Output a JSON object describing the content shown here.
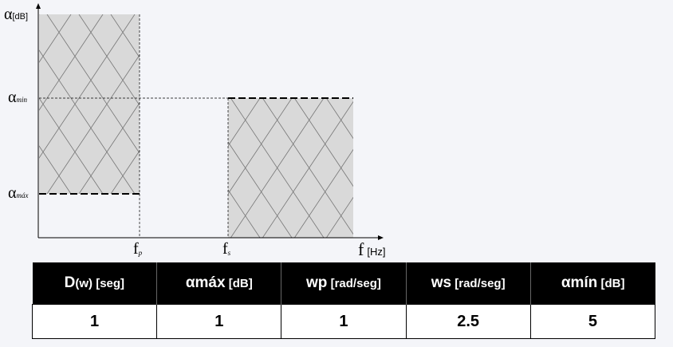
{
  "diagram": {
    "y_axis_symbol": "α",
    "y_axis_unit": "[dB]",
    "alpha_min": {
      "symbol": "α",
      "sub": "min"
    },
    "alpha_max": {
      "symbol": "α",
      "sub": "máx"
    },
    "fp": {
      "symbol": "f",
      "sub": "p"
    },
    "fs": {
      "symbol": "f",
      "sub": "s"
    },
    "x_axis_symbol": "f",
    "x_axis_unit": "[Hz]",
    "colors": {
      "region_fill": "#d9d9d9",
      "hatch": "#777777",
      "axis": "#000000"
    }
  },
  "table": {
    "headers": [
      {
        "main": "D",
        "sub": "(w) [seg]"
      },
      {
        "main": "αmáx",
        "sub": " [dB]"
      },
      {
        "main": "wp",
        "sub": " [rad/seg]"
      },
      {
        "main": "ws",
        "sub": " [rad/seg]"
      },
      {
        "main": "αmín",
        "sub": " [dB]"
      }
    ],
    "values": [
      "1",
      "1",
      "1",
      "2.5",
      "5"
    ]
  }
}
